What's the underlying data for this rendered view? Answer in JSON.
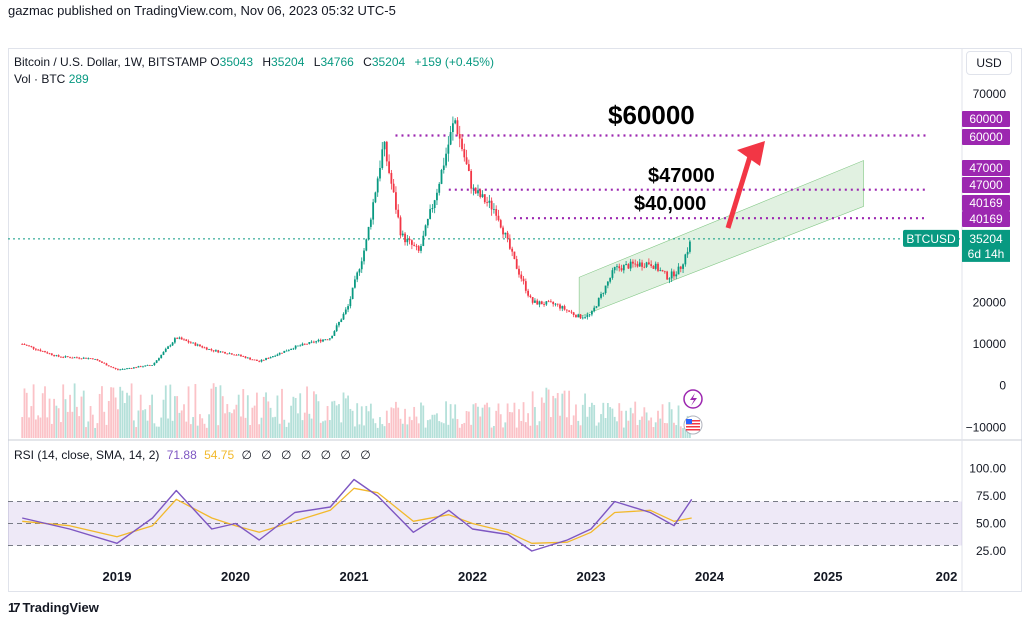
{
  "header": {
    "published": "gazmac published on TradingView.com, Nov 06, 2023 05:32 UTC-5"
  },
  "legend": {
    "symbol": "Bitcoin / U.S. Dollar, 1W, BITSTAMP",
    "o_label": "O",
    "o_value": "35043",
    "h_label": "H",
    "h_value": "35204",
    "l_label": "L",
    "l_value": "34766",
    "c_label": "C",
    "c_value": "35204",
    "change": "+159 (+0.45%)",
    "vol_label": "Vol · BTC",
    "vol_value": "289"
  },
  "rsi_legend": {
    "label": "RSI (14, close, SMA, 14, 2)",
    "rsi": "71.88",
    "sma": "54.75",
    "extras": "∅ ∅ ∅ ∅ ∅ ∅ ∅"
  },
  "currency": "USD",
  "footer": {
    "brand": "TradingView"
  },
  "colors": {
    "up": "#089981",
    "down": "#f23645",
    "level": "#9c27b0",
    "channel": "#c8e6c9",
    "rsi": "#7e57c2",
    "rsi_sma": "#f2b92c",
    "arrow": "#f23645"
  },
  "chart_data": [
    {
      "type": "candlestick",
      "x_ticks": [
        "2019",
        "2020",
        "2021",
        "2022",
        "2023",
        "2024",
        "2025",
        "202"
      ],
      "y_ticks": [
        70000,
        60000,
        50000,
        40000,
        30000,
        20000,
        10000,
        0,
        -10000
      ],
      "y_tick_labels": [
        "70000",
        "",
        "",
        "",
        "",
        "20000",
        "10000",
        "0",
        "−10000"
      ],
      "annotations": [
        {
          "text": "$60000",
          "level": 60000
        },
        {
          "text": "$47000",
          "level": 47000
        },
        {
          "text": "$40,000",
          "level": 40169
        }
      ],
      "price_tags": [
        {
          "text": "60000",
          "level": 60000
        },
        {
          "text": "60000",
          "level": 60000
        },
        {
          "text": "47000",
          "level": 47000
        },
        {
          "text": "47000",
          "level": 47000
        },
        {
          "text": "40169",
          "level": 40169
        },
        {
          "text": "40169",
          "level": 40169
        }
      ],
      "last_price": {
        "symbol": "BTCUSD",
        "value": "35204",
        "countdown": "6d 14h"
      },
      "series": [
        {
          "x": [
            2018.2,
            2018.5,
            2018.8,
            2019.0,
            2019.3,
            2019.5,
            2019.8,
            2020.0,
            2020.2,
            2020.5,
            2020.8,
            2020.95,
            2021.1,
            2021.25,
            2021.4,
            2021.55,
            2021.7,
            2021.85,
            2022.0,
            2022.2,
            2022.35,
            2022.5,
            2022.7,
            2022.9,
            2023.0,
            2023.2,
            2023.35,
            2023.5,
            2023.65,
            2023.75,
            2023.85
          ],
          "values": [
            10000,
            7000,
            6500,
            3800,
            5000,
            11500,
            8500,
            7500,
            5800,
            9300,
            11500,
            19000,
            34000,
            58000,
            36000,
            32000,
            47000,
            64000,
            47000,
            42000,
            30000,
            20000,
            19500,
            16500,
            17000,
            28000,
            29000,
            29500,
            26000,
            28000,
            35204
          ]
        }
      ],
      "channel": {
        "start": {
          "x": 2022.9,
          "low": 16500,
          "high": 26000
        },
        "end": {
          "x": 2025.3,
          "low": 43000,
          "high": 54000
        }
      }
    },
    {
      "type": "line",
      "name": "RSI",
      "y_ticks": [
        100,
        75,
        50,
        25
      ],
      "y_tick_labels": [
        "100.00",
        "75.00",
        "50.00",
        "25.00"
      ],
      "band": [
        30,
        70
      ],
      "series": [
        {
          "name": "",
          "x": [
            2018.2,
            2018.6,
            2019.0,
            2019.3,
            2019.5,
            2019.8,
            2020.0,
            2020.2,
            2020.5,
            2020.8,
            2021.0,
            2021.2,
            2021.5,
            2021.8,
            2022.0,
            2022.3,
            2022.5,
            2022.8,
            2023.0,
            2023.2,
            2023.5,
            2023.7,
            2023.85
          ],
          "values": [
            55,
            45,
            32,
            55,
            80,
            45,
            50,
            35,
            60,
            65,
            90,
            75,
            42,
            62,
            45,
            40,
            25,
            35,
            45,
            70,
            60,
            48,
            72
          ]
        },
        {
          "name": "",
          "x": [
            2018.2,
            2018.6,
            2019.0,
            2019.3,
            2019.5,
            2019.8,
            2020.0,
            2020.2,
            2020.5,
            2020.8,
            2021.0,
            2021.2,
            2021.5,
            2021.8,
            2022.0,
            2022.3,
            2022.5,
            2022.8,
            2023.0,
            2023.2,
            2023.5,
            2023.7,
            2023.85
          ],
          "values": [
            52,
            48,
            38,
            48,
            72,
            55,
            48,
            42,
            52,
            62,
            82,
            78,
            52,
            58,
            50,
            42,
            32,
            33,
            42,
            60,
            62,
            52,
            55
          ]
        }
      ]
    }
  ]
}
